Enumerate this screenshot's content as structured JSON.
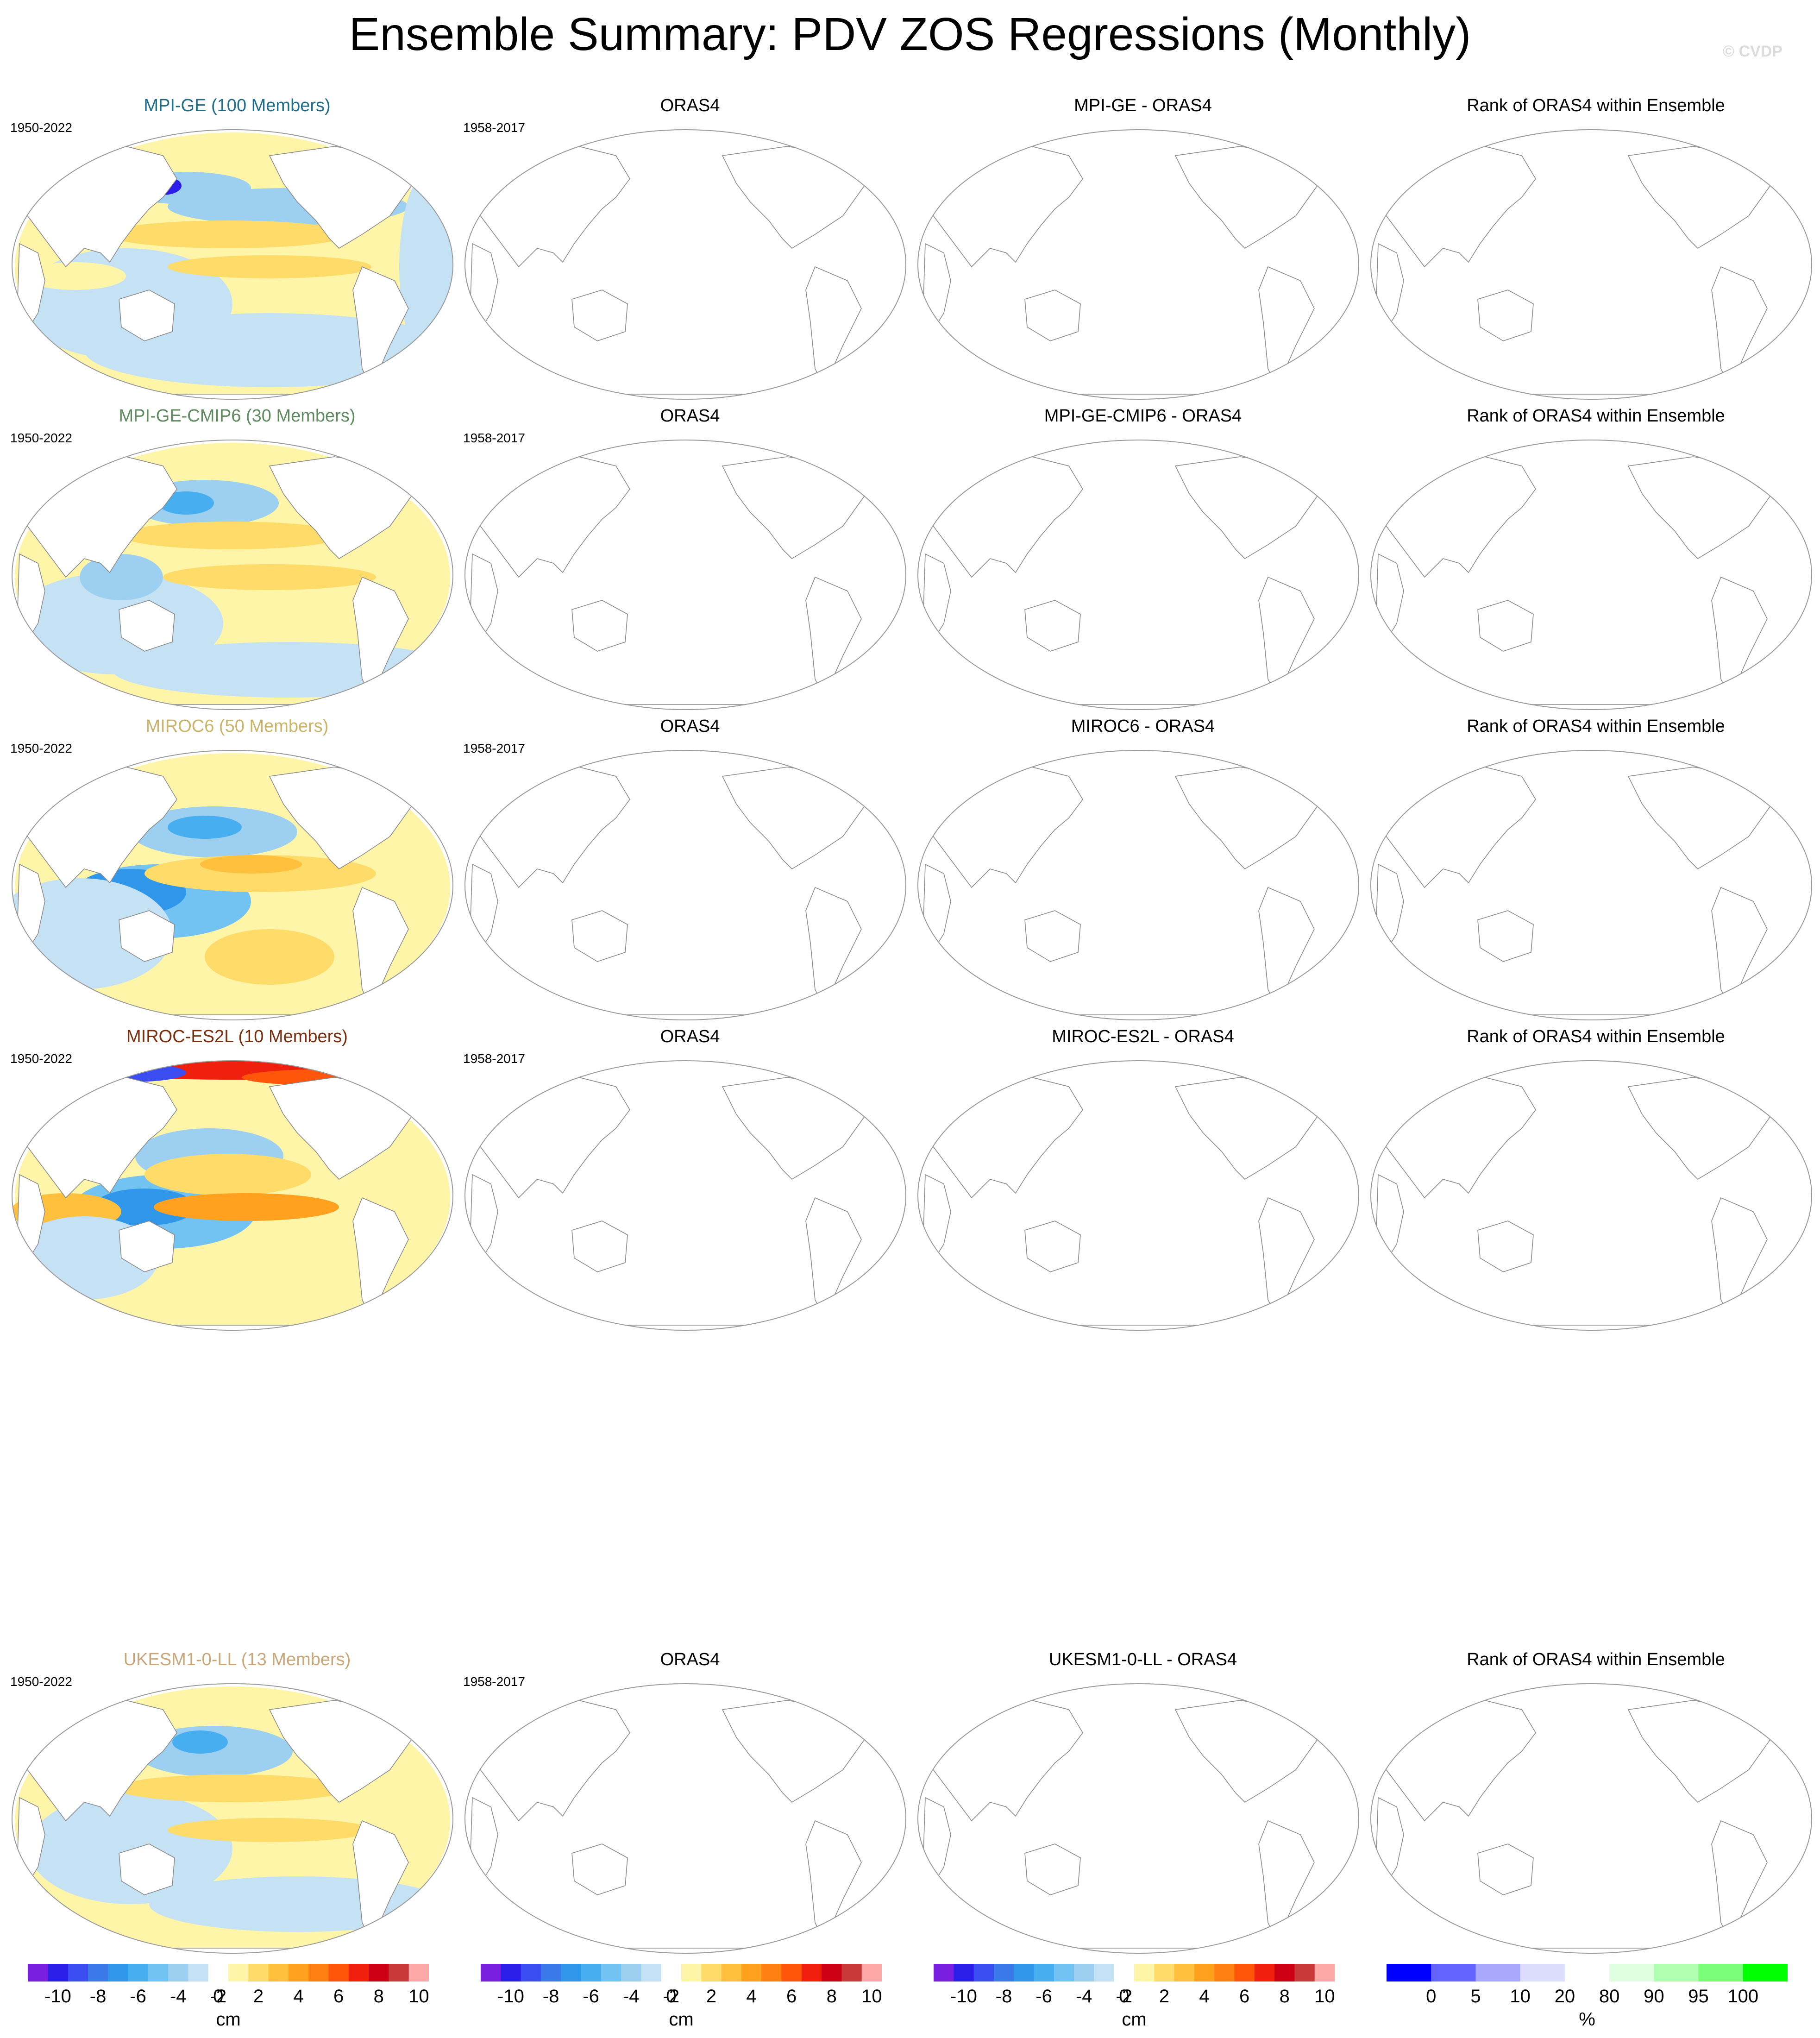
{
  "figure": {
    "title": "Ensemble Summary: PDV ZOS Regressions (Monthly)",
    "watermark": "© CVDP"
  },
  "rows": [
    {
      "model": {
        "title": "MPI-GE (100 Members)",
        "color": "#1f6d8a",
        "period": "1950-2022"
      },
      "obs": {
        "title": "ORAS4",
        "period": "1958-2017"
      },
      "diff": {
        "title": "MPI-GE - ORAS4"
      },
      "rank": {
        "title": "Rank of ORAS4 within Ensemble"
      }
    },
    {
      "model": {
        "title": "MPI-GE-CMIP6 (30 Members)",
        "color": "#5f8a5f",
        "period": "1950-2022"
      },
      "obs": {
        "title": "ORAS4",
        "period": "1958-2017"
      },
      "diff": {
        "title": "MPI-GE-CMIP6 - ORAS4"
      },
      "rank": {
        "title": "Rank of ORAS4 within Ensemble"
      }
    },
    {
      "model": {
        "title": "MIROC6 (50 Members)",
        "color": "#c9b46a",
        "period": "1950-2022"
      },
      "obs": {
        "title": "ORAS4",
        "period": "1958-2017"
      },
      "diff": {
        "title": "MIROC6 - ORAS4"
      },
      "rank": {
        "title": "Rank of ORAS4 within Ensemble"
      }
    },
    {
      "model": {
        "title": "MIROC-ES2L (10 Members)",
        "color": "#7a2e0e",
        "period": "1950-2022"
      },
      "obs": {
        "title": "ORAS4",
        "period": "1958-2017"
      },
      "diff": {
        "title": "MIROC-ES2L - ORAS4"
      },
      "rank": {
        "title": "Rank of ORAS4 within Ensemble"
      }
    },
    {
      "model": {
        "title": "UKESM1-0-LL (13 Members)",
        "color": "#c9a77a",
        "period": "1950-2022"
      },
      "obs": {
        "title": "ORAS4",
        "period": "1958-2017"
      },
      "diff": {
        "title": "UKESM1-0-LL - ORAS4"
      },
      "rank": {
        "title": "Rank of ORAS4 within Ensemble"
      }
    }
  ],
  "colorbars": {
    "cm": {
      "unit": "cm",
      "colors": [
        "#7a1ee0",
        "#2a1ee8",
        "#3b4cf0",
        "#3a78e8",
        "#2f96ea",
        "#47aef0",
        "#72c2f2",
        "#9ccff0",
        "#c4e2f3",
        "#ffffff",
        "#fff5a8",
        "#ffdb6a",
        "#ffc13d",
        "#ffa11f",
        "#ff7f10",
        "#ff560c",
        "#f0200e",
        "#cc0014",
        "#c83a3a",
        "#ffa8a8"
      ],
      "tick_labels": [
        "-10",
        "-8",
        "-6",
        "-4",
        "-2",
        "0",
        "2",
        "4",
        "6",
        "8",
        "10"
      ]
    },
    "pct": {
      "unit": "%",
      "colors": [
        "#0000ff",
        "#6363ff",
        "#a8a8ff",
        "#dcdcff",
        "#ffffff",
        "#e0ffe0",
        "#b0ffb0",
        "#7aff7a",
        "#00ff00"
      ],
      "tick_labels": [
        "0",
        "5",
        "10",
        "20",
        "80",
        "90",
        "95",
        "100"
      ]
    }
  }
}
